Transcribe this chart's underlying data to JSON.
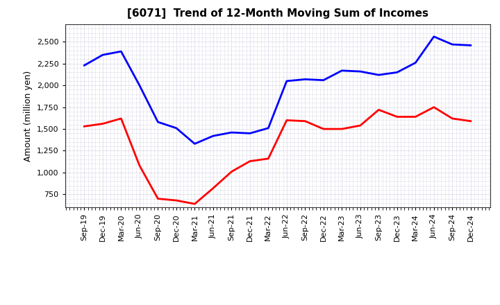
{
  "title": "[6071]  Trend of 12-Month Moving Sum of Incomes",
  "ylabel": "Amount (million yen)",
  "background_color": "#ffffff",
  "plot_bg_color": "#ffffff",
  "grid_color": "#aaaacc",
  "x_labels": [
    "Sep-19",
    "Dec-19",
    "Mar-20",
    "Jun-20",
    "Sep-20",
    "Dec-20",
    "Mar-21",
    "Jun-21",
    "Sep-21",
    "Dec-21",
    "Mar-22",
    "Jun-22",
    "Sep-22",
    "Dec-22",
    "Mar-23",
    "Jun-23",
    "Sep-23",
    "Dec-23",
    "Mar-24",
    "Jun-24",
    "Sep-24",
    "Dec-24"
  ],
  "ordinary_income": [
    2230,
    2350,
    2390,
    2000,
    1580,
    1510,
    1330,
    1420,
    1460,
    1450,
    1510,
    2050,
    2070,
    2060,
    2170,
    2160,
    2120,
    2150,
    2260,
    2560,
    2470,
    2460
  ],
  "net_income": [
    1530,
    1560,
    1620,
    1080,
    700,
    680,
    640,
    820,
    1010,
    1130,
    1160,
    1600,
    1590,
    1500,
    1500,
    1540,
    1720,
    1640,
    1640,
    1750,
    1620,
    1590
  ],
  "ordinary_color": "#0000ff",
  "net_color": "#ff0000",
  "ylim_min": 600,
  "ylim_max": 2700,
  "yticks": [
    750,
    1000,
    1250,
    1500,
    1750,
    2000,
    2250,
    2500
  ],
  "line_width": 2.0,
  "title_fontsize": 11,
  "label_fontsize": 8,
  "ylabel_fontsize": 9
}
